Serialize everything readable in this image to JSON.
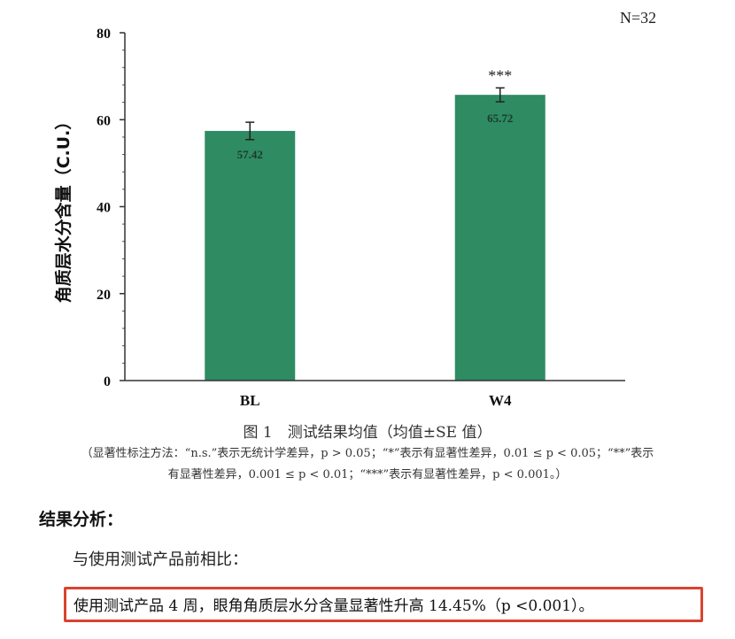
{
  "chart_data": {
    "type": "bar",
    "categories": [
      "BL",
      "W4"
    ],
    "values": [
      57.42,
      65.72
    ],
    "value_labels": [
      "57.42",
      "65.72"
    ],
    "error": [
      2.0,
      1.6
    ],
    "significance": [
      "",
      "***"
    ],
    "ylabel": "角质层水分含量（C.U.）",
    "ylim": [
      0,
      80
    ],
    "yticks": [
      0,
      20,
      40,
      60,
      80
    ],
    "sample_size": "N=32",
    "bar_color": "#2e8b62",
    "grid": false,
    "legend": "none"
  },
  "figure": {
    "caption": "图 1　测试结果均值（均值±SE 值）",
    "note_line1": "（显著性标注方法：“n.s.”表示无统计学差异，p > 0.05；“*”表示有显著性差异，0.01 ≤ p < 0.05；“**”表示",
    "note_line2": "有显著性差异，0.001 ≤ p < 0.01；“***”表示有显著性差异，p < 0.001。）"
  },
  "analysis": {
    "title": "结果分析：",
    "intro": "与使用测试产品前相比：",
    "highlight": "使用测试产品 4 周，眼角角质层水分含量显著性升高 14.45%（p <0.001）。",
    "highlight_border": "#d9432f"
  }
}
